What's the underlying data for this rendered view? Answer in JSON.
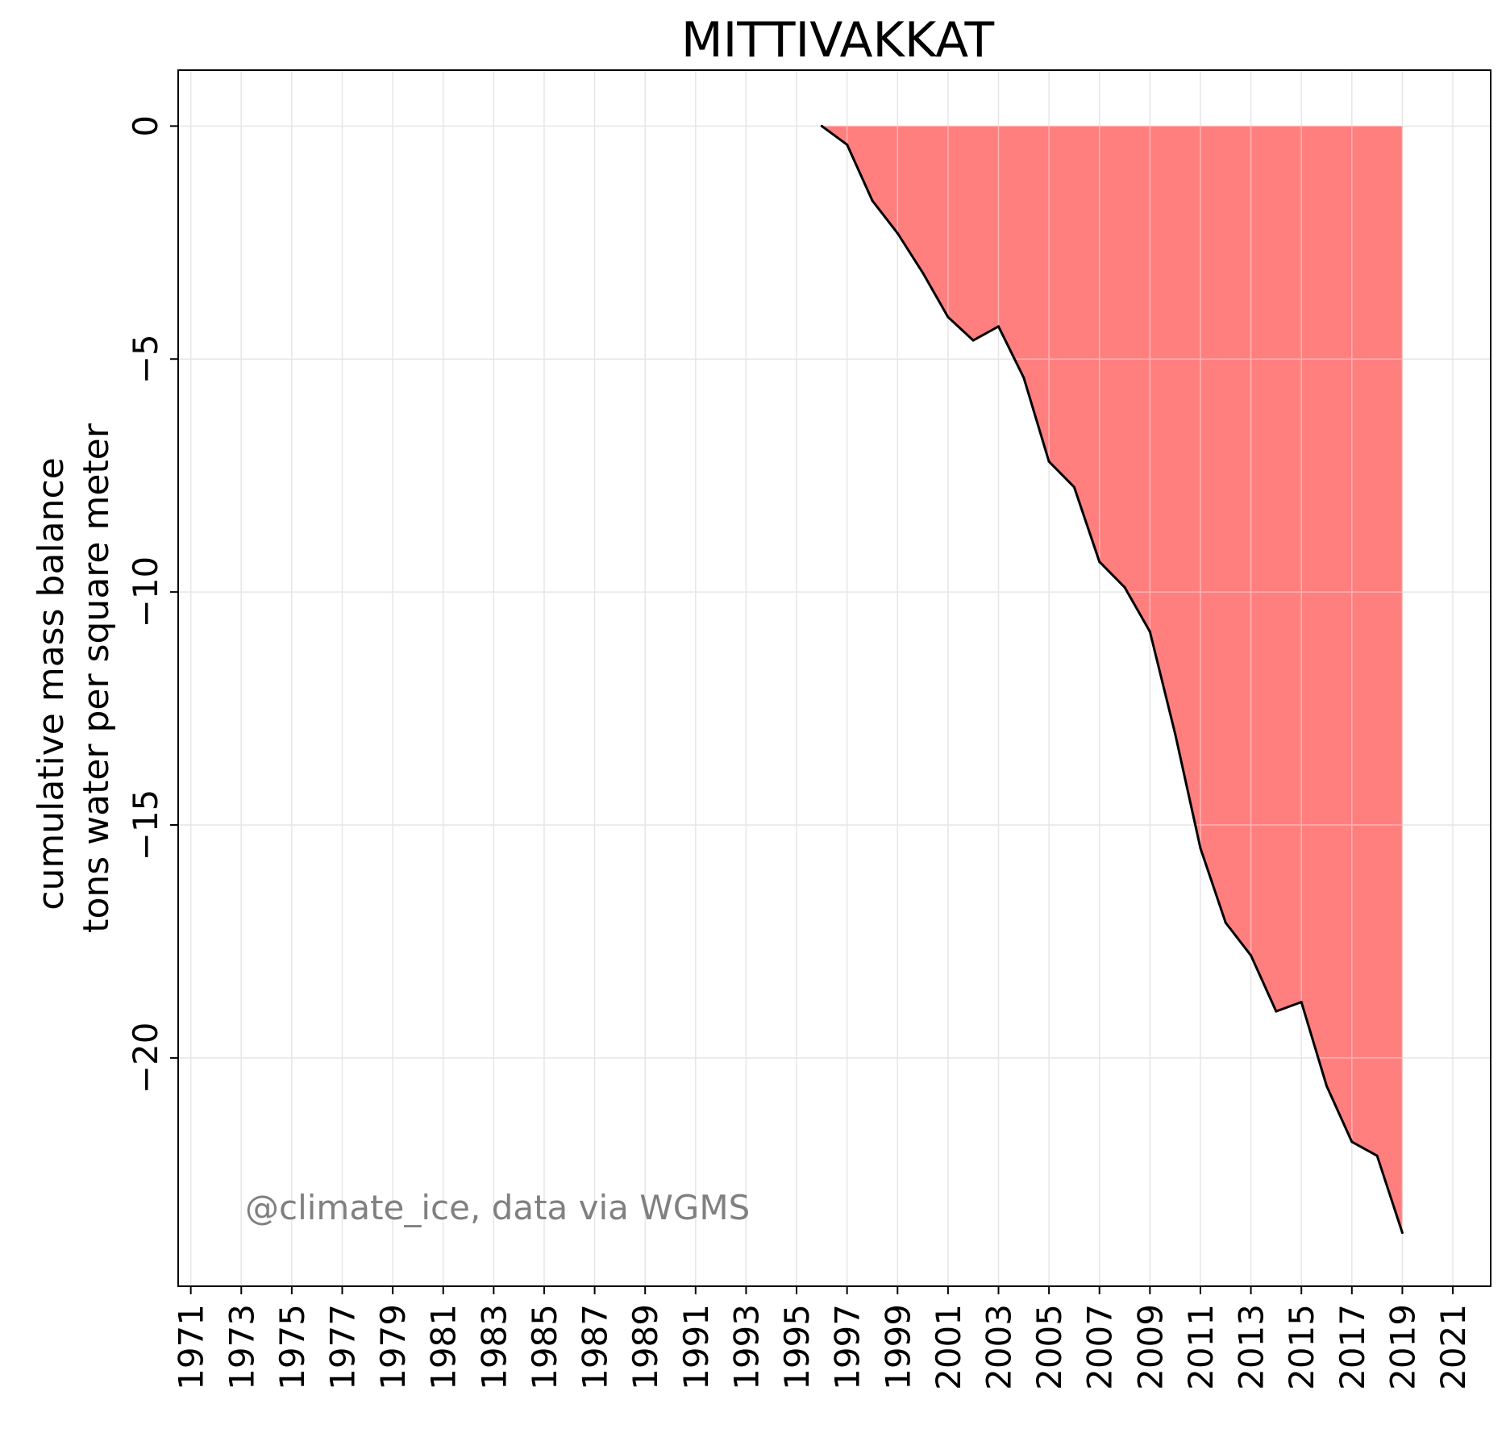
{
  "chart_data": {
    "type": "area",
    "title": "MITTIVAKKAT",
    "ylabel_lines": [
      "cumulative mass balance",
      "tons water per square meter"
    ],
    "xlabel": "",
    "xlim": [
      1970.5,
      2022.5
    ],
    "ylim": [
      -24.9,
      1.2
    ],
    "x_ticks": [
      1971,
      1973,
      1975,
      1977,
      1979,
      1981,
      1983,
      1985,
      1987,
      1989,
      1991,
      1993,
      1995,
      1997,
      1999,
      2001,
      2003,
      2005,
      2007,
      2009,
      2011,
      2013,
      2015,
      2017,
      2019,
      2021
    ],
    "x_tick_labels": [
      "1971",
      "1973",
      "1975",
      "1977",
      "1979",
      "1981",
      "1983",
      "1985",
      "1987",
      "1989",
      "1991",
      "1993",
      "1995",
      "1997",
      "1999",
      "2001",
      "2003",
      "2005",
      "2007",
      "2009",
      "2011",
      "2013",
      "2015",
      "2017",
      "2019",
      "2021"
    ],
    "y_ticks": [
      0,
      -5,
      -10,
      -15,
      -20
    ],
    "y_tick_labels": [
      "0",
      "−5",
      "−10",
      "−15",
      "−20"
    ],
    "grid": true,
    "fill_color": "#ff7f7f",
    "line_color": "#000000",
    "grid_color": "#e6e6e6",
    "series": [
      {
        "x": [
          1996,
          1997,
          1998,
          1999,
          2000,
          2001,
          2002,
          2003,
          2004,
          2005,
          2006,
          2007,
          2008,
          2009,
          2010,
          2011,
          2012,
          2013,
          2014,
          2015,
          2016,
          2017,
          2018,
          2019
        ],
        "values": [
          0,
          -0.4,
          -1.6,
          -2.3,
          -3.15,
          -4.1,
          -4.6,
          -4.3,
          -5.4,
          -7.2,
          -7.75,
          -9.35,
          -9.9,
          -10.85,
          -13.05,
          -15.5,
          -17.1,
          -17.8,
          -19.0,
          -18.8,
          -20.6,
          -21.8,
          -22.1,
          -23.75
        ]
      }
    ],
    "annotation": "@climate_ice, data via WGMS",
    "annotation_color": "#808080"
  }
}
